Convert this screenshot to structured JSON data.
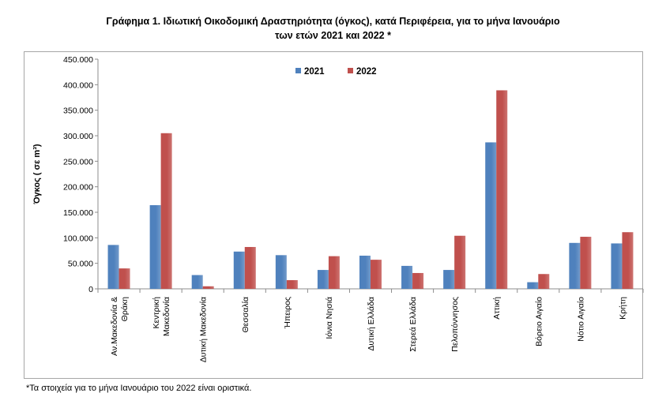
{
  "chart_data": {
    "type": "bar",
    "title_line1": "Γράφημα 1.  Ιδιωτική Οικοδομική Δραστηριότητα (όγκος), κατά Περιφέρεια, για το μήνα Ιανουάριο",
    "title_line2": "των ετών 2021 και 2022 *",
    "ylabel": "Όγκος ( σε  m³)",
    "xlabel": "",
    "ylim": [
      0,
      450000
    ],
    "yticks": [
      "0",
      "50.000",
      "100.000",
      "150.000",
      "200.000",
      "250.000",
      "300.000",
      "350.000",
      "400.000",
      "450.000"
    ],
    "categories": [
      "Αν.Μακεδονία & Θράκη",
      "Κεντρική Μακεδονία",
      "Δυτική Μακεδονία",
      "Θεσσαλία",
      "Ήπειρος",
      "Ιόνια Νησιά",
      "Δυτική Ελλάδα",
      "Στερεά Ελλάδα",
      "Πελοπόννησος",
      "Αττική",
      "Βόρειο Αιγαίο",
      "Νότιο Αιγαίο",
      "Κρήτη"
    ],
    "category_lines": [
      [
        "Αν.Μακεδονία &",
        "Θράκη"
      ],
      [
        "Κεντρική",
        "Μακεδονία"
      ],
      [
        "Δυτική Μακεδονία"
      ],
      [
        "Θεσσαλία"
      ],
      [
        "Ήπειρος"
      ],
      [
        "Ιόνια Νησιά"
      ],
      [
        "Δυτική Ελλάδα"
      ],
      [
        "Στερεά Ελλάδα"
      ],
      [
        "Πελοπόννησος"
      ],
      [
        "Αττική"
      ],
      [
        "Βόρειο Αιγαίο"
      ],
      [
        "Νότιο Αιγαίο"
      ],
      [
        "Κρήτη"
      ]
    ],
    "series": [
      {
        "name": "2021",
        "color": "#4f81bd",
        "values": [
          86000,
          164000,
          27000,
          73000,
          66000,
          37000,
          65000,
          45000,
          37000,
          287000,
          13000,
          90000,
          89000
        ]
      },
      {
        "name": "2022",
        "color": "#c0504d",
        "values": [
          40000,
          305000,
          5000,
          82000,
          17000,
          64000,
          57000,
          31000,
          104000,
          389000,
          29000,
          102000,
          111000
        ]
      }
    ],
    "legend_position": "top-center",
    "grid": false
  },
  "footnote": "*Τα στοιχεία για το μήνα Ιανουάριο του 2022 είναι οριστικά."
}
